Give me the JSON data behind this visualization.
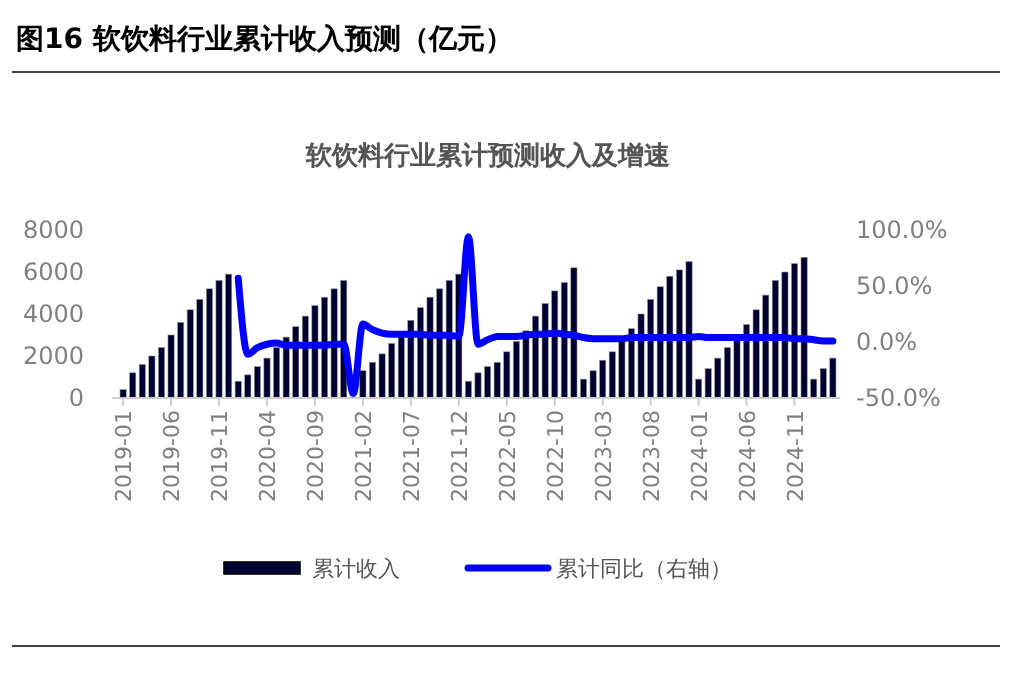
{
  "chart_data": {
    "type": "bar",
    "title": "图16 软饮料行业累计收入预测（亿元）",
    "subtitle": "软饮料行业累计预测收入及增速",
    "categories": [
      "2019-01",
      null,
      null,
      null,
      null,
      "2019-06",
      null,
      null,
      null,
      null,
      "2019-11",
      null,
      null,
      null,
      null,
      "2020-04",
      null,
      null,
      null,
      null,
      "2020-09",
      null,
      null,
      null,
      null,
      "2021-02",
      null,
      null,
      null,
      null,
      "2021-07",
      null,
      null,
      null,
      null,
      "2021-12",
      null,
      null,
      null,
      null,
      "2022-05",
      null,
      null,
      null,
      null,
      "2022-10",
      null,
      null,
      null,
      null,
      "2023-03",
      null,
      null,
      null,
      null,
      "2023-08",
      null,
      null,
      null,
      null,
      "2024-01",
      null,
      null,
      null,
      null,
      "2024-06",
      null,
      null,
      null,
      null,
      "2024-11",
      null,
      null,
      null,
      null
    ],
    "series": [
      {
        "name": "累计收入",
        "color": "#000033",
        "values": [
          400,
          1200,
          1600,
          2000,
          2400,
          3000,
          3600,
          4200,
          4700,
          5200,
          5600,
          5900,
          800,
          1100,
          1500,
          1900,
          2400,
          2900,
          3400,
          3900,
          4400,
          4800,
          5200,
          5600,
          null,
          1300,
          1700,
          2100,
          2600,
          3000,
          3700,
          4300,
          4800,
          5200,
          5600,
          5900,
          800,
          1200,
          1500,
          1700,
          2200,
          2700,
          3200,
          3900,
          4500,
          5100,
          5500,
          6200,
          900,
          1300,
          1800,
          2200,
          2800,
          3300,
          4000,
          4700,
          5300,
          5800,
          6100,
          6500,
          900,
          1400,
          1900,
          2400,
          2800,
          3500,
          4200,
          4900,
          5600,
          6000,
          6400,
          6700,
          900,
          1400,
          1900
        ]
      },
      {
        "name": "累计同比（右轴）",
        "type": "line",
        "axis": "y2",
        "color": "#0000ff",
        "values": [
          null,
          null,
          null,
          null,
          null,
          null,
          null,
          null,
          null,
          null,
          null,
          null,
          57,
          -11,
          -5,
          -2,
          -1,
          -3,
          -3,
          -3,
          -3,
          -3,
          -2,
          -2,
          -46,
          16,
          11,
          8,
          7,
          7,
          7,
          7,
          6,
          6,
          6,
          5,
          94,
          -2,
          2,
          5,
          5,
          5,
          6,
          7,
          7,
          8,
          7,
          6,
          4,
          3,
          3,
          3,
          3,
          4,
          4,
          4,
          4,
          4,
          4,
          4,
          5,
          4,
          4,
          4,
          4,
          4,
          4,
          4,
          4,
          4,
          3,
          3,
          2,
          1,
          1
        ]
      }
    ],
    "ylim": [
      0,
      8000
    ],
    "yticks": [
      0,
      2000,
      4000,
      6000,
      8000
    ],
    "y2lim": [
      -50,
      100
    ],
    "y2ticks": [
      {
        "value": -50,
        "label": "-50.0%"
      },
      {
        "value": 0,
        "label": "0.0%"
      },
      {
        "value": 50,
        "label": "50.0%"
      },
      {
        "value": 100,
        "label": "100.0%"
      }
    ],
    "legend": "bottom",
    "grid": false
  }
}
